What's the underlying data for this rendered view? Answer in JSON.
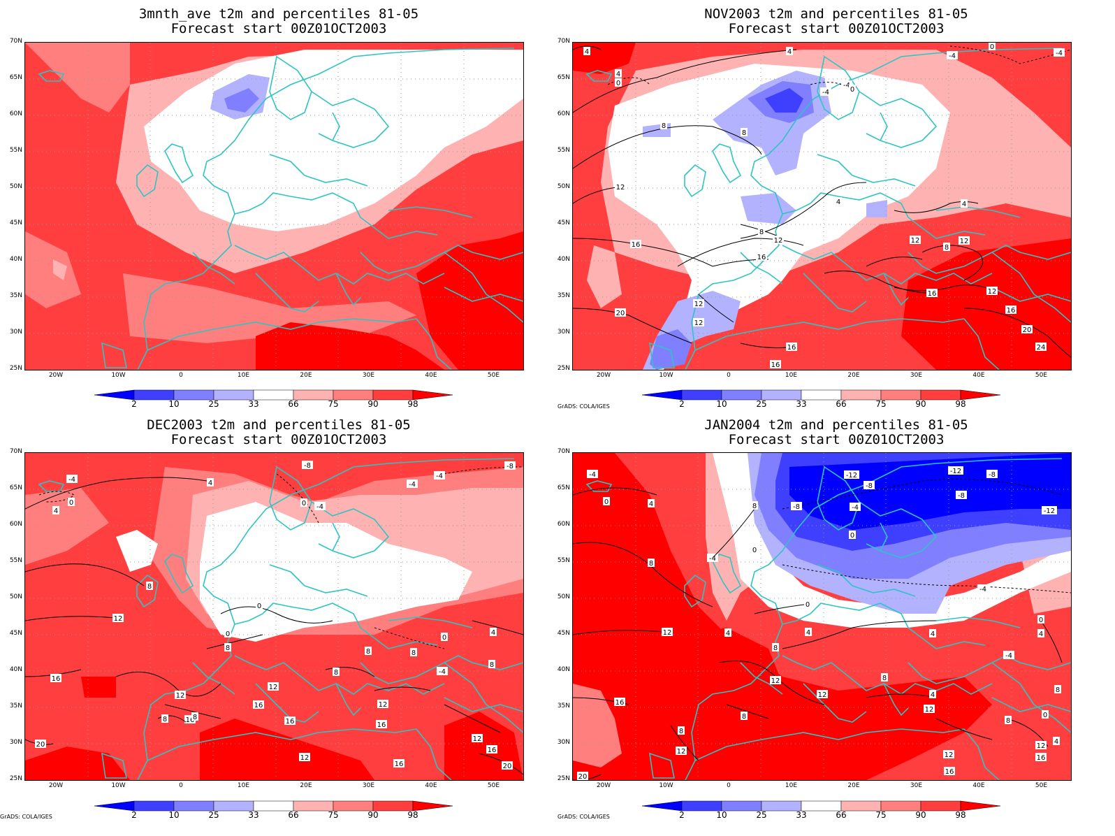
{
  "panels": [
    {
      "title_line1": "3mnth_ave t2m and percentiles 81-05",
      "title_line2": "Forecast start 00Z01OCT2003",
      "credit": ""
    },
    {
      "title_line1": "NOV2003 t2m and percentiles 81-05",
      "title_line2": "Forecast start 00Z01OCT2003",
      "credit": "GrADS: COLA/IGES"
    },
    {
      "title_line1": "DEC2003 t2m and percentiles 81-05",
      "title_line2": "Forecast start 00Z01OCT2003",
      "credit": "GrADS: COLA/IGES"
    },
    {
      "title_line1": "JAN2004 t2m and percentiles 81-05",
      "title_line2": "Forecast start 00Z01OCT2003",
      "credit": "GrADS: COLA/IGES"
    }
  ],
  "axes": {
    "lat_labels": [
      "70N",
      "65N",
      "60N",
      "55N",
      "50N",
      "45N",
      "40N",
      "35N",
      "30N",
      "25N"
    ],
    "lon_labels": [
      "20W",
      "10W",
      "0",
      "10E",
      "20E",
      "30E",
      "40E",
      "50E"
    ]
  },
  "colorbar": {
    "labels": [
      "2",
      "10",
      "25",
      "33",
      "66",
      "75",
      "90",
      "98"
    ],
    "colors": [
      "#0000ff",
      "#3f3fff",
      "#7f7fff",
      "#b2b2ff",
      "#ffffff",
      "#ffb2b2",
      "#ff7f7f",
      "#ff3f3f",
      "#ff0000"
    ]
  },
  "map_colors": {
    "coast": "#2ec4c4",
    "grid": "#999999",
    "contour": "#000000"
  }
}
